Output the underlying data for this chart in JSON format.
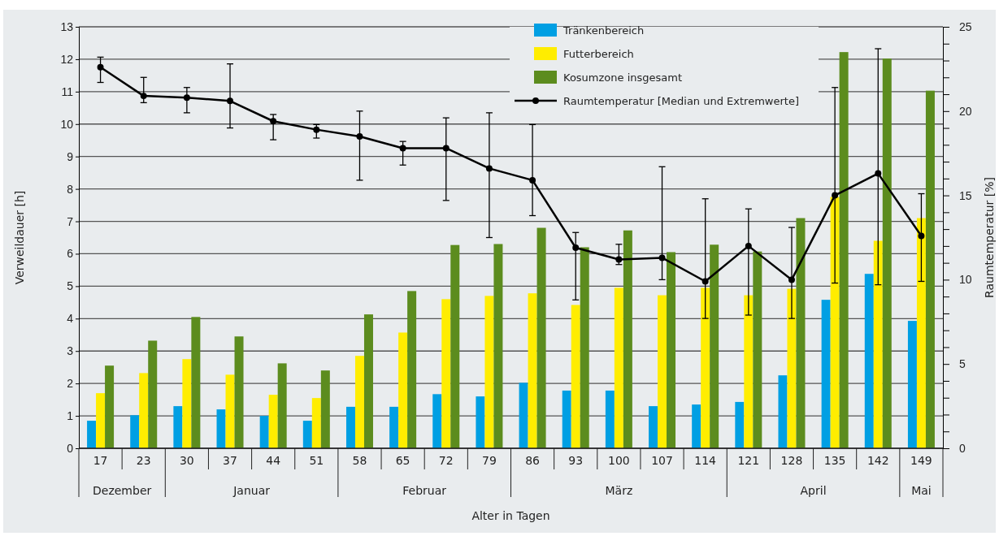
{
  "chart_data": {
    "type": "bar",
    "xlabel": "Alter in Tagen",
    "ylabel": "Verweildauer [h]",
    "y2label": "Raumtemperatur [%]",
    "categories": [
      "17",
      "23",
      "30",
      "37",
      "44",
      "51",
      "58",
      "65",
      "72",
      "79",
      "86",
      "93",
      "100",
      "107",
      "114",
      "121",
      "128",
      "135",
      "142",
      "149"
    ],
    "series": [
      {
        "name": "Tränkenbereich",
        "color": "#009fe3",
        "values": [
          0.85,
          1.02,
          1.3,
          1.2,
          1.0,
          0.85,
          1.28,
          1.28,
          1.67,
          1.6,
          2.02,
          1.78,
          1.78,
          1.3,
          1.35,
          1.43,
          2.25,
          4.58,
          5.38,
          3.93
        ]
      },
      {
        "name": "Futterbereich",
        "color": "#ffed00",
        "values": [
          1.7,
          2.32,
          2.75,
          2.27,
          1.65,
          1.55,
          2.85,
          3.57,
          4.6,
          4.7,
          4.78,
          4.42,
          4.95,
          4.72,
          4.95,
          4.72,
          4.92,
          7.75,
          6.4,
          7.1
        ]
      },
      {
        "name": "Kosumzone insgesamt",
        "color": "#5c8c1e",
        "values": [
          2.55,
          3.32,
          4.05,
          3.45,
          2.62,
          2.4,
          4.13,
          4.85,
          6.27,
          6.3,
          6.8,
          6.2,
          6.72,
          6.05,
          6.28,
          6.07,
          7.1,
          12.22,
          12.02,
          11.03
        ]
      },
      {
        "name": "Raumtemperatur [Median und Extremwerte]",
        "type": "line",
        "axis": "y2",
        "color": "#000000",
        "marker": "circle",
        "line_style": "solid",
        "values": [
          22.6,
          20.9,
          20.8,
          20.6,
          19.4,
          18.9,
          18.5,
          17.8,
          17.8,
          16.6,
          15.9,
          11.9,
          11.2,
          11.3,
          9.9,
          12.0,
          10.0,
          15.0,
          16.3,
          12.6
        ],
        "errors": [
          [
            21.7,
            23.2
          ],
          [
            20.5,
            22.0
          ],
          [
            19.9,
            21.4
          ],
          [
            19.0,
            22.8
          ],
          [
            18.3,
            19.8
          ],
          [
            18.4,
            19.2
          ],
          [
            15.9,
            20.0
          ],
          [
            16.8,
            18.2
          ],
          [
            14.7,
            19.6
          ],
          [
            12.5,
            19.9
          ],
          [
            13.8,
            19.2
          ],
          [
            8.8,
            12.8
          ],
          [
            10.9,
            12.1
          ],
          [
            10.0,
            16.7
          ],
          [
            7.7,
            14.8
          ],
          [
            7.9,
            14.2
          ],
          [
            7.7,
            13.1
          ],
          [
            9.8,
            21.4
          ],
          [
            9.7,
            23.7
          ],
          [
            9.9,
            15.1
          ]
        ]
      }
    ],
    "ylim": [
      0,
      13
    ],
    "yticks": [
      0,
      1,
      2,
      3,
      4,
      5,
      6,
      7,
      8,
      9,
      10,
      11,
      12,
      13
    ],
    "y2lim": [
      0,
      25
    ],
    "y2ticks": [
      0,
      {
        "value": 1,
        "label": null
      },
      {
        "value": 2,
        "label": null
      },
      {
        "value": 3,
        "label": null
      },
      {
        "value": 4,
        "label": null
      },
      5,
      {
        "value": 6,
        "label": null
      },
      {
        "value": 7,
        "label": null
      },
      {
        "value": 8,
        "label": null
      },
      {
        "value": 9,
        "label": null
      },
      10,
      {
        "value": 11,
        "label": null
      },
      {
        "value": 12,
        "label": null
      },
      {
        "value": 13,
        "label": null
      },
      {
        "value": 14,
        "label": null
      },
      15,
      {
        "value": 16,
        "label": null
      },
      {
        "value": 17,
        "label": null
      },
      {
        "value": 18,
        "label": null
      },
      {
        "value": 19,
        "label": null
      },
      20,
      {
        "value": 21,
        "label": null
      },
      {
        "value": 22,
        "label": null
      },
      {
        "value": 23,
        "label": null
      },
      {
        "value": 24,
        "label": null
      },
      25
    ],
    "grid": "y",
    "legend": "top right",
    "annotations": [
      "Dezember",
      "Januar",
      "Februar",
      "März",
      "April",
      "Mai"
    ]
  }
}
